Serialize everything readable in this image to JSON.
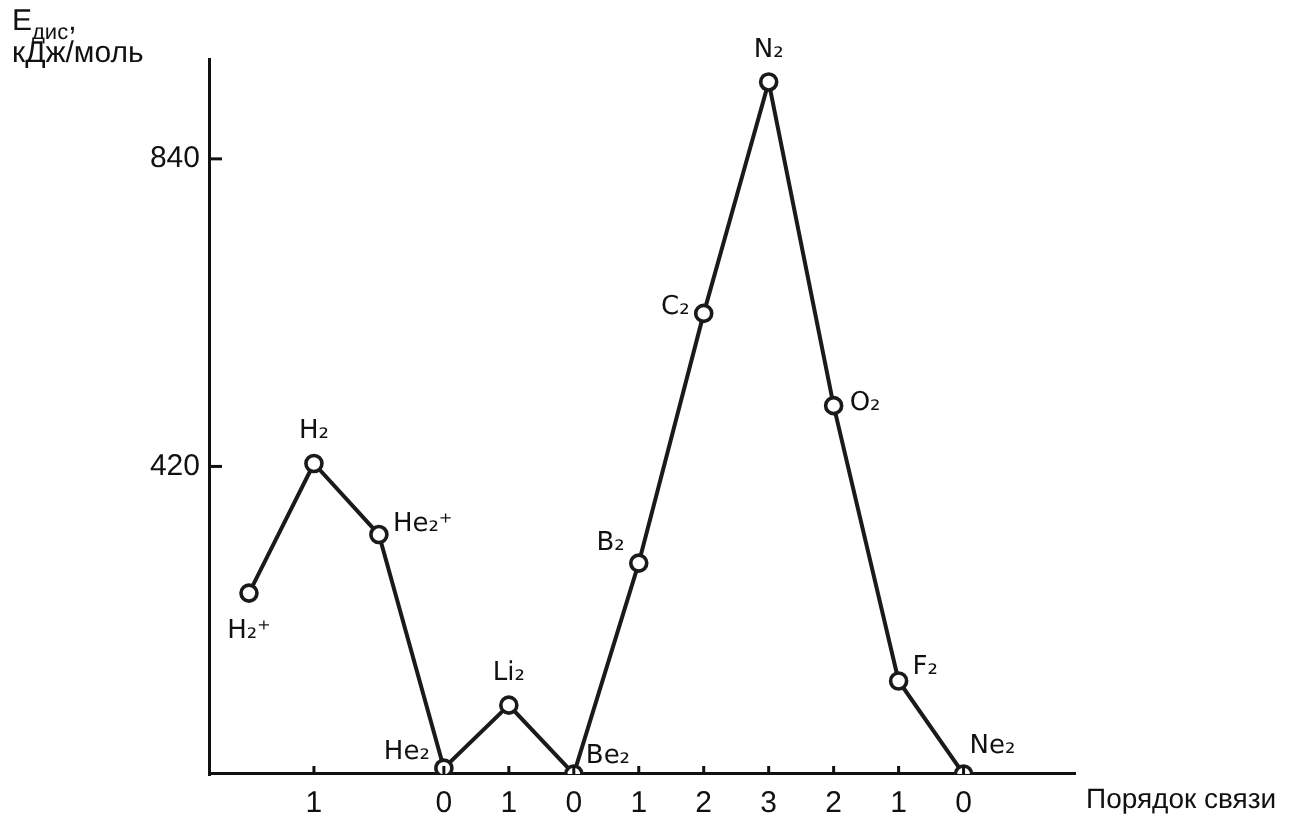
{
  "chart_data": {
    "type": "line",
    "ylabel": "E$_{дис}$, кДж/моль",
    "xlabel": "Порядок связи",
    "categories": [
      null,
      "1",
      null,
      "0",
      "1",
      "0",
      "1",
      "2",
      "3",
      "2",
      "1",
      "0"
    ],
    "values": [
      247,
      424,
      327,
      8,
      94,
      0,
      288,
      629,
      945,
      503,
      127,
      0
    ],
    "value_labels": [
      "H₂⁺",
      "H₂",
      "He₂⁺",
      "He₂",
      "Li₂",
      "Be₂",
      "B₂",
      "C₂",
      "N₂",
      "O₂",
      "F₂",
      "Ne₂"
    ],
    "color": "#1a1a1a",
    "marker": "circle",
    "line_style": "solid",
    "ylim": [
      0,
      975
    ],
    "yticks": [
      420,
      840
    ]
  }
}
